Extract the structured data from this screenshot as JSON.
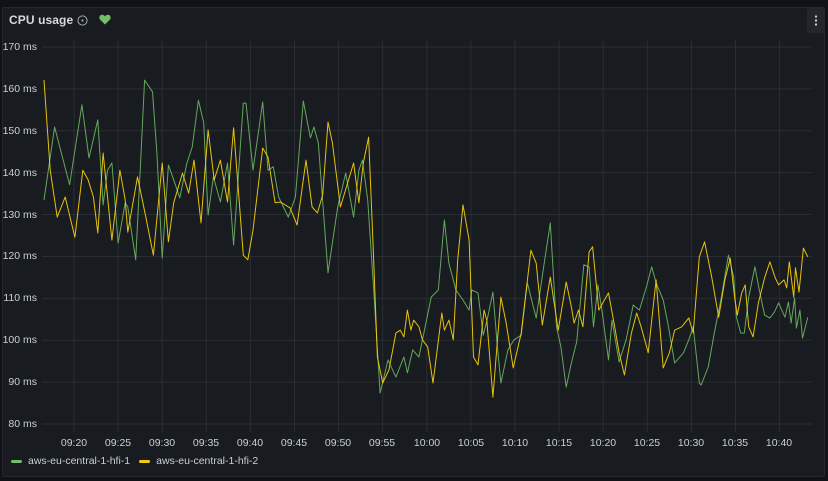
{
  "panel": {
    "title": "CPU usage",
    "info_icon": "info-circle-icon",
    "health_icon": "heart-icon",
    "health_color": "#73bf69",
    "menu_icon": "ellipsis-vertical-icon"
  },
  "colors": {
    "background": "#111217",
    "panel": "#181b1f",
    "grid": "#2a2d33"
  },
  "legend": {
    "items": [
      {
        "label": "aws-eu-central-1-hfi-1",
        "color": "#73bf69"
      },
      {
        "label": "aws-eu-central-1-hfi-2",
        "color": "#f2cc0c"
      }
    ]
  },
  "chart_data": {
    "type": "line",
    "title": "CPU usage",
    "xlabel": "",
    "ylabel": "",
    "x_unit": "minutes after 09:00",
    "ylim": [
      80,
      170
    ],
    "xlim": [
      16.6,
      103.2
    ],
    "grid": true,
    "legend_position": "bottom",
    "yticks": [
      {
        "value": 170,
        "label": "170 ms"
      },
      {
        "value": 160,
        "label": "160 ms"
      },
      {
        "value": 150,
        "label": "150 ms"
      },
      {
        "value": 140,
        "label": "140 ms"
      },
      {
        "value": 130,
        "label": "130 ms"
      },
      {
        "value": 120,
        "label": "120 ms"
      },
      {
        "value": 110,
        "label": "110 ms"
      },
      {
        "value": 100,
        "label": "100 ms"
      },
      {
        "value": 90,
        "label": "90 ms"
      },
      {
        "value": 80,
        "label": "80 ms"
      }
    ],
    "xticks": [
      {
        "value": 20,
        "label": "09:20"
      },
      {
        "value": 25,
        "label": "09:25"
      },
      {
        "value": 30,
        "label": "09:30"
      },
      {
        "value": 35,
        "label": "09:35"
      },
      {
        "value": 40,
        "label": "09:40"
      },
      {
        "value": 45,
        "label": "09:45"
      },
      {
        "value": 50,
        "label": "09:50"
      },
      {
        "value": 55,
        "label": "09:55"
      },
      {
        "value": 60,
        "label": "10:00"
      },
      {
        "value": 65,
        "label": "10:05"
      },
      {
        "value": 70,
        "label": "10:10"
      },
      {
        "value": 75,
        "label": "10:15"
      },
      {
        "value": 80,
        "label": "10:20"
      },
      {
        "value": 85,
        "label": "10:25"
      },
      {
        "value": 90,
        "label": "10:30"
      },
      {
        "value": 95,
        "label": "10:35"
      },
      {
        "value": 100,
        "label": "10:40"
      }
    ],
    "series": [
      {
        "name": "aws-eu-central-1-hfi-1",
        "color": "#73bf69",
        "points": [
          [
            16.6,
            133.5
          ],
          [
            17.8,
            150.9
          ],
          [
            19.5,
            137.1
          ],
          [
            20.9,
            156.2
          ],
          [
            21.7,
            143.5
          ],
          [
            22.7,
            152.6
          ],
          [
            23.3,
            132.3
          ],
          [
            23.8,
            140.6
          ],
          [
            24.3,
            142.3
          ],
          [
            25.0,
            123.2
          ],
          [
            25.8,
            132.8
          ],
          [
            26.1,
            131.8
          ],
          [
            27.0,
            119.2
          ],
          [
            27.5,
            140.6
          ],
          [
            28.0,
            162.1
          ],
          [
            28.9,
            159.3
          ],
          [
            29.4,
            144.7
          ],
          [
            30.0,
            119.6
          ],
          [
            30.7,
            141.8
          ],
          [
            31.3,
            138.3
          ],
          [
            32.0,
            134.0
          ],
          [
            32.8,
            142.3
          ],
          [
            33.4,
            146.1
          ],
          [
            34.1,
            157.3
          ],
          [
            34.7,
            151.9
          ],
          [
            35.2,
            129.9
          ],
          [
            35.8,
            139.0
          ],
          [
            36.6,
            133.0
          ],
          [
            37.4,
            142.3
          ],
          [
            38.1,
            122.7
          ],
          [
            39.2,
            156.6
          ],
          [
            39.5,
            156.6
          ],
          [
            40.3,
            140.6
          ],
          [
            41.4,
            156.9
          ],
          [
            42.0,
            140.6
          ],
          [
            42.6,
            141.4
          ],
          [
            43.2,
            134.2
          ],
          [
            44.3,
            129.4
          ],
          [
            45.1,
            134.2
          ],
          [
            46.0,
            157.1
          ],
          [
            46.8,
            148.3
          ],
          [
            47.2,
            150.9
          ],
          [
            47.7,
            147.1
          ],
          [
            48.8,
            116.1
          ],
          [
            49.9,
            131.8
          ],
          [
            50.8,
            139.9
          ],
          [
            51.7,
            129.4
          ],
          [
            52.3,
            140.6
          ],
          [
            52.7,
            143.0
          ],
          [
            53.3,
            133.5
          ],
          [
            54.0,
            111.3
          ],
          [
            54.7,
            87.4
          ],
          [
            55.6,
            95.3
          ],
          [
            56.5,
            91.2
          ],
          [
            57.4,
            96.0
          ],
          [
            57.8,
            92.2
          ],
          [
            58.4,
            97.7
          ],
          [
            59.1,
            96.0
          ],
          [
            59.9,
            104.1
          ],
          [
            60.5,
            110.3
          ],
          [
            61.3,
            112.0
          ],
          [
            62.0,
            128.7
          ],
          [
            62.5,
            118.4
          ],
          [
            63.3,
            112.0
          ],
          [
            64.1,
            109.6
          ],
          [
            64.8,
            107.2
          ],
          [
            65.1,
            112.0
          ],
          [
            65.8,
            111.3
          ],
          [
            66.4,
            101.2
          ],
          [
            66.9,
            105.5
          ],
          [
            67.5,
            111.5
          ],
          [
            68.0,
            98.4
          ],
          [
            68.4,
            89.8
          ],
          [
            69.2,
            97.7
          ],
          [
            69.9,
            100.1
          ],
          [
            70.7,
            101.2
          ],
          [
            71.4,
            113.7
          ],
          [
            72.4,
            105.3
          ],
          [
            73.2,
            116.8
          ],
          [
            74.0,
            128.0
          ],
          [
            74.7,
            103.2
          ],
          [
            75.2,
            98.4
          ],
          [
            75.8,
            88.8
          ],
          [
            76.4,
            94.6
          ],
          [
            77.0,
            99.6
          ],
          [
            77.8,
            118.0
          ],
          [
            78.4,
            117.5
          ],
          [
            78.9,
            103.2
          ],
          [
            79.4,
            113.2
          ],
          [
            79.9,
            106.5
          ],
          [
            80.6,
            95.3
          ],
          [
            81.0,
            104.8
          ],
          [
            81.8,
            94.8
          ],
          [
            82.6,
            100.1
          ],
          [
            83.4,
            108.4
          ],
          [
            84.1,
            107.2
          ],
          [
            84.9,
            112.7
          ],
          [
            85.5,
            117.5
          ],
          [
            86.0,
            113.7
          ],
          [
            86.8,
            109.6
          ],
          [
            87.4,
            103.2
          ],
          [
            88.1,
            94.6
          ],
          [
            89.1,
            97.0
          ],
          [
            89.7,
            100.1
          ],
          [
            90.2,
            103.2
          ],
          [
            90.9,
            89.8
          ],
          [
            91.1,
            89.3
          ],
          [
            91.9,
            93.6
          ],
          [
            92.6,
            101.7
          ],
          [
            93.4,
            110.3
          ],
          [
            94.2,
            120.3
          ],
          [
            94.8,
            115.1
          ],
          [
            95.1,
            105.5
          ],
          [
            95.6,
            101.7
          ],
          [
            96.0,
            101.7
          ],
          [
            96.5,
            110.3
          ],
          [
            97.2,
            117.5
          ],
          [
            97.7,
            112.0
          ],
          [
            98.3,
            106.0
          ],
          [
            98.9,
            105.3
          ],
          [
            99.4,
            106.7
          ],
          [
            99.9,
            108.9
          ],
          [
            100.6,
            105.5
          ],
          [
            101.0,
            109.1
          ],
          [
            101.3,
            104.1
          ],
          [
            101.7,
            110.1
          ],
          [
            101.9,
            102.9
          ],
          [
            102.3,
            107.2
          ],
          [
            102.6,
            100.5
          ],
          [
            103.2,
            105.5
          ]
        ]
      },
      {
        "name": "aws-eu-central-1-hfi-2",
        "color": "#f2cc0c",
        "points": [
          [
            16.6,
            162.1
          ],
          [
            17.3,
            140.6
          ],
          [
            18.1,
            129.4
          ],
          [
            19.0,
            134.2
          ],
          [
            20.1,
            124.6
          ],
          [
            21.0,
            140.6
          ],
          [
            21.6,
            138.3
          ],
          [
            22.2,
            134.2
          ],
          [
            22.7,
            125.6
          ],
          [
            23.3,
            144.7
          ],
          [
            24.3,
            123.9
          ],
          [
            25.2,
            140.6
          ],
          [
            25.8,
            133.5
          ],
          [
            26.1,
            125.8
          ],
          [
            27.2,
            139.0
          ],
          [
            28.1,
            129.9
          ],
          [
            29.0,
            120.3
          ],
          [
            30.0,
            142.3
          ],
          [
            30.7,
            123.5
          ],
          [
            31.3,
            132.8
          ],
          [
            32.3,
            139.9
          ],
          [
            33.0,
            135.1
          ],
          [
            33.6,
            143.0
          ],
          [
            34.4,
            128.0
          ],
          [
            35.2,
            150.2
          ],
          [
            35.9,
            138.3
          ],
          [
            36.6,
            143.0
          ],
          [
            37.4,
            133.0
          ],
          [
            38.1,
            150.7
          ],
          [
            39.2,
            120.3
          ],
          [
            39.7,
            119.2
          ],
          [
            40.3,
            126.3
          ],
          [
            41.4,
            145.9
          ],
          [
            42.0,
            143.7
          ],
          [
            42.8,
            132.8
          ],
          [
            43.4,
            133.0
          ],
          [
            44.5,
            131.6
          ],
          [
            45.3,
            127.5
          ],
          [
            46.3,
            143.0
          ],
          [
            47.0,
            131.8
          ],
          [
            47.6,
            130.4
          ],
          [
            48.2,
            134.7
          ],
          [
            48.8,
            152.1
          ],
          [
            49.3,
            147.1
          ],
          [
            50.2,
            131.8
          ],
          [
            51.7,
            142.3
          ],
          [
            52.3,
            132.8
          ],
          [
            52.8,
            142.3
          ],
          [
            53.4,
            148.5
          ],
          [
            53.9,
            123.2
          ],
          [
            54.4,
            96.0
          ],
          [
            55.0,
            89.8
          ],
          [
            55.7,
            92.9
          ],
          [
            56.5,
            101.7
          ],
          [
            57.0,
            102.4
          ],
          [
            57.4,
            100.8
          ],
          [
            57.8,
            107.2
          ],
          [
            58.2,
            102.4
          ],
          [
            58.5,
            104.8
          ],
          [
            59.1,
            103.2
          ],
          [
            59.5,
            100.1
          ],
          [
            60.1,
            98.4
          ],
          [
            60.7,
            89.8
          ],
          [
            61.7,
            106.5
          ],
          [
            62.0,
            102.4
          ],
          [
            62.5,
            104.8
          ],
          [
            63.0,
            100.1
          ],
          [
            63.5,
            119.2
          ],
          [
            64.1,
            132.3
          ],
          [
            64.8,
            123.9
          ],
          [
            65.3,
            96.0
          ],
          [
            65.8,
            94.1
          ],
          [
            66.5,
            107.2
          ],
          [
            66.8,
            104.8
          ],
          [
            67.5,
            86.4
          ],
          [
            68.4,
            110.3
          ],
          [
            69.0,
            104.1
          ],
          [
            69.8,
            93.4
          ],
          [
            70.7,
            101.7
          ],
          [
            71.8,
            121.5
          ],
          [
            72.4,
            118.4
          ],
          [
            73.1,
            103.6
          ],
          [
            74.0,
            115.1
          ],
          [
            74.9,
            102.4
          ],
          [
            75.8,
            113.9
          ],
          [
            76.4,
            107.9
          ],
          [
            76.7,
            104.1
          ],
          [
            77.2,
            107.2
          ],
          [
            77.7,
            103.2
          ],
          [
            78.4,
            121.1
          ],
          [
            78.8,
            122.3
          ],
          [
            79.5,
            107.2
          ],
          [
            80.0,
            109.1
          ],
          [
            80.6,
            111.3
          ],
          [
            81.3,
            103.2
          ],
          [
            81.8,
            97.0
          ],
          [
            82.4,
            91.7
          ],
          [
            83.2,
            101.7
          ],
          [
            83.8,
            106.5
          ],
          [
            84.3,
            103.2
          ],
          [
            85.1,
            97.0
          ],
          [
            86.0,
            114.4
          ],
          [
            86.8,
            93.4
          ],
          [
            87.5,
            97.0
          ],
          [
            88.1,
            102.4
          ],
          [
            88.9,
            103.2
          ],
          [
            89.7,
            105.3
          ],
          [
            90.2,
            101.7
          ],
          [
            90.9,
            119.9
          ],
          [
            91.5,
            123.5
          ],
          [
            92.3,
            115.1
          ],
          [
            93.1,
            105.5
          ],
          [
            93.8,
            114.4
          ],
          [
            94.4,
            119.6
          ],
          [
            94.9,
            110.3
          ],
          [
            95.2,
            106.0
          ],
          [
            95.7,
            111.3
          ],
          [
            96.1,
            113.2
          ],
          [
            96.5,
            103.2
          ],
          [
            97.0,
            100.8
          ],
          [
            97.6,
            108.9
          ],
          [
            98.3,
            114.9
          ],
          [
            98.9,
            118.7
          ],
          [
            99.5,
            114.9
          ],
          [
            99.9,
            113.2
          ],
          [
            100.5,
            114.4
          ],
          [
            100.8,
            112.5
          ],
          [
            101.1,
            118.7
          ],
          [
            101.6,
            110.3
          ],
          [
            101.8,
            117.3
          ],
          [
            102.2,
            111.5
          ],
          [
            102.7,
            122.0
          ],
          [
            103.2,
            119.9
          ]
        ]
      }
    ]
  }
}
